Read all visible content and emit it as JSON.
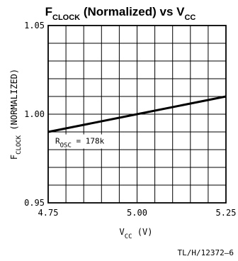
{
  "chart_data": {
    "type": "line",
    "title": {
      "parts": [
        {
          "text": "F",
          "sub": false
        },
        {
          "text": "CLOCK",
          "sub": true
        },
        {
          "text": " (Normalized) vs V",
          "sub": false
        },
        {
          "text": "CC",
          "sub": true
        }
      ]
    },
    "xlabel": {
      "parts": [
        {
          "text": "V",
          "sub": false
        },
        {
          "text": "CC",
          "sub": true
        },
        {
          "text": "  (V)",
          "sub": false
        }
      ]
    },
    "ylabel": {
      "parts": [
        {
          "text": "F",
          "sub": false
        },
        {
          "text": "CLOCK",
          "sub": true
        },
        {
          "text": "  (NORMALIZED)",
          "sub": false
        }
      ]
    },
    "xlim": [
      4.75,
      5.25
    ],
    "ylim": [
      0.95,
      1.05
    ],
    "x_ticks": [
      4.75,
      5.0,
      5.25
    ],
    "x_tick_labels": [
      "4.75",
      "5.00",
      "5.25"
    ],
    "y_ticks": [
      0.95,
      1.0,
      1.05
    ],
    "y_tick_labels": [
      "0.95",
      "1.00",
      "1.05"
    ],
    "grid": true,
    "grid_x_step": 0.05,
    "grid_y_step": 0.01,
    "series": [
      {
        "x": [
          4.75,
          5.0,
          5.25
        ],
        "y": [
          0.99,
          1.0,
          1.01
        ],
        "color": "#000000"
      }
    ],
    "annotation": {
      "parts": [
        {
          "text": "R",
          "sub": false
        },
        {
          "text": "OSC",
          "sub": true
        },
        {
          "text": " = 178k",
          "sub": false
        }
      ],
      "x": 4.75,
      "y": 0.985
    },
    "reference": "TL/H/12372–6"
  }
}
